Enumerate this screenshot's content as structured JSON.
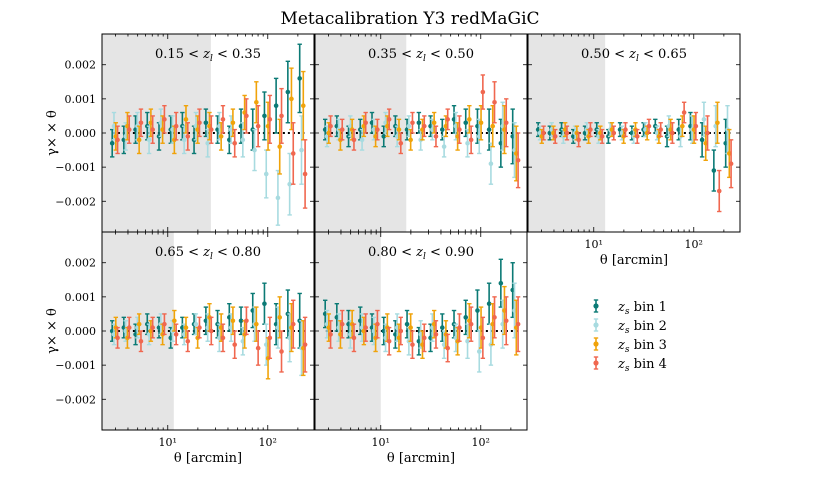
{
  "chart_data": {
    "type": "scatter",
    "title": "Metacalibration Y3 redMaGiC",
    "xlabel": "θ [arcmin]",
    "ylabel": "γ× × θ",
    "xscale": "log",
    "xlim": [
      2.2,
      290
    ],
    "ylim": [
      -0.0029,
      0.0029
    ],
    "yticks": [
      -0.002,
      -0.001,
      0.0,
      0.001,
      0.002
    ],
    "ytick_labels": [
      "−0.002",
      "−0.001",
      "0.000",
      "0.001",
      "0.002"
    ],
    "xtick_labels": [
      "10¹",
      "10²"
    ],
    "theta_bins": [
      2.96,
      3.87,
      5.07,
      6.64,
      8.7,
      11.4,
      14.9,
      19.5,
      25.6,
      33.5,
      43.9,
      57.5,
      75.3,
      98.6,
      129,
      169,
      222
    ],
    "series": [
      {
        "name": "zs bin 1",
        "label": "zs bin 1",
        "color": "#0b7a75"
      },
      {
        "name": "zs bin 2",
        "label": "zs bin 2",
        "color": "#a8dbe0"
      },
      {
        "name": "zs bin 3",
        "label": "zs bin 3",
        "color": "#f0a30a"
      },
      {
        "name": "zs bin 4",
        "label": "zs bin 4",
        "color": "#f0674f"
      }
    ],
    "panels": [
      {
        "label": "0.15 < zl < 0.35",
        "excluded_below_theta": 27,
        "values": [
          [
            -0.0003,
            -0.0002,
            0.0001,
            0.0002,
            -0.0001,
            0.0001,
            0.0002,
            -0.0002,
            0.0003,
            0.0001,
            -0.0002,
            0.0002,
            0.0001,
            0.0005,
            0.0008,
            0.0012,
            0.0016
          ],
          [
            0.0002,
            -0.0001,
            0.0002,
            -0.0002,
            0.0003,
            0.0001,
            -0.0002,
            0.0002,
            -0.0003,
            0.0002,
            0.0001,
            -0.0002,
            -0.0005,
            -0.0012,
            -0.0019,
            -0.0015,
            -0.0005
          ],
          [
            -0.0001,
            0.0002,
            -0.0002,
            0.0003,
            0.0001,
            -0.0002,
            0.0004,
            0.0001,
            0.0002,
            -0.0001,
            0.0003,
            0.0006,
            0.0009,
            0.0002,
            -0.0004,
            0.001,
            0.0008
          ],
          [
            -0.0002,
            0.0001,
            0.0003,
            0.0001,
            0.0004,
            0.0002,
            -0.0001,
            0.0003,
            0.0001,
            0.0004,
            -0.0003,
            0.0005,
            0.0002,
            0.0004,
            0.0005,
            -0.0006,
            -0.0012
          ]
        ],
        "errors": [
          [
            0.0004,
            0.0004,
            0.0004,
            0.0004,
            0.0004,
            0.0004,
            0.0004,
            0.0004,
            0.0004,
            0.0004,
            0.0004,
            0.0005,
            0.0006,
            0.0007,
            0.0008,
            0.0009,
            0.001
          ],
          [
            0.0004,
            0.0004,
            0.0004,
            0.0004,
            0.0004,
            0.0004,
            0.0004,
            0.0004,
            0.0004,
            0.0004,
            0.0004,
            0.0005,
            0.0006,
            0.0007,
            0.0008,
            0.0009,
            0.001
          ],
          [
            0.0004,
            0.0004,
            0.0004,
            0.0004,
            0.0004,
            0.0004,
            0.0004,
            0.0004,
            0.0004,
            0.0004,
            0.0004,
            0.0005,
            0.0006,
            0.0007,
            0.0008,
            0.0009,
            0.001
          ],
          [
            0.0004,
            0.0004,
            0.0004,
            0.0004,
            0.0004,
            0.0004,
            0.0004,
            0.0004,
            0.0004,
            0.0004,
            0.0004,
            0.0005,
            0.0006,
            0.0007,
            0.0008,
            0.0009,
            0.001
          ]
        ]
      },
      {
        "label": "0.35 < zl < 0.50",
        "excluded_below_theta": 18,
        "values": [
          [
            0.0001,
            0.0002,
            -0.0001,
            0.0001,
            0.0003,
            -0.0001,
            0.0002,
            0.0001,
            0.0003,
            0.0002,
            0.0001,
            0.0004,
            0.0003,
            0.0002,
            0.0001,
            -0.0003,
            -0.0001
          ],
          [
            -0.0001,
            0.0001,
            0.0002,
            -0.0002,
            0.0001,
            0.0003,
            -0.0001,
            0.0002,
            -0.0002,
            0.0001,
            -0.0004,
            0.0002,
            -0.0003,
            -0.0001,
            -0.0009,
            0.0002,
            -0.0005
          ],
          [
            0.0,
            -0.0002,
            0.0001,
            0.0002,
            -0.0001,
            0.0002,
            0.0001,
            -0.0002,
            0.0001,
            0.0003,
            0.0002,
            -0.0001,
            0.0004,
            0.0003,
            0.0002,
            0.0001,
            -0.0006
          ],
          [
            0.0002,
            0.0001,
            -0.0002,
            0.0003,
            0.0001,
            0.0004,
            -0.0003,
            0.0003,
            0.0002,
            -0.0001,
            0.0004,
            0.0001,
            -0.0002,
            0.0012,
            0.0009,
            0.0003,
            -0.0008
          ]
        ],
        "errors": [
          [
            0.0003,
            0.0003,
            0.0003,
            0.0003,
            0.0003,
            0.0003,
            0.0003,
            0.0003,
            0.0003,
            0.0003,
            0.0003,
            0.0004,
            0.0004,
            0.0005,
            0.0006,
            0.0007,
            0.0008
          ],
          [
            0.0003,
            0.0003,
            0.0003,
            0.0003,
            0.0003,
            0.0003,
            0.0003,
            0.0003,
            0.0003,
            0.0003,
            0.0003,
            0.0004,
            0.0004,
            0.0005,
            0.0006,
            0.0007,
            0.0008
          ],
          [
            0.0003,
            0.0003,
            0.0003,
            0.0003,
            0.0003,
            0.0003,
            0.0003,
            0.0003,
            0.0003,
            0.0003,
            0.0003,
            0.0004,
            0.0004,
            0.0005,
            0.0006,
            0.0007,
            0.0008
          ],
          [
            0.0003,
            0.0003,
            0.0003,
            0.0003,
            0.0003,
            0.0003,
            0.0003,
            0.0003,
            0.0003,
            0.0003,
            0.0003,
            0.0004,
            0.0004,
            0.0005,
            0.0006,
            0.0007,
            0.0008
          ]
        ]
      },
      {
        "label": "0.50 < zl < 0.65",
        "excluded_below_theta": 13,
        "values": [
          [
            0.0001,
            0.0,
            0.0001,
            -0.0001,
            0.0,
            0.0001,
            -0.0001,
            0.0001,
            0.0,
            0.0001,
            0.0002,
            -0.0001,
            0.0001,
            0.0002,
            -0.0002,
            -0.0011,
            -0.0003
          ],
          [
            0.0,
            0.0001,
            -0.0001,
            0.0,
            0.0001,
            -0.0001,
            0.0001,
            0.0,
            -0.0001,
            0.0001,
            0.0,
            0.0002,
            -0.0001,
            0.0001,
            0.0004,
            0.0002,
            0.0001
          ],
          [
            -0.0001,
            0.0,
            0.0001,
            0.0,
            -0.0001,
            0.0,
            0.0001,
            -0.0001,
            0.0001,
            0.0,
            -0.0001,
            0.0001,
            0.0002,
            0.0001,
            -0.0003,
            0.0003,
            -0.0006
          ],
          [
            0.0,
            -0.0001,
            0.0,
            -0.0002,
            0.0001,
            -0.0001,
            0.0,
            0.0001,
            -0.0001,
            0.0002,
            0.0001,
            0.0,
            0.0006,
            0.0002,
            0.0,
            -0.0017,
            -0.0009
          ]
        ],
        "errors": [
          [
            0.0002,
            0.0002,
            0.0002,
            0.0002,
            0.0002,
            0.0002,
            0.0002,
            0.0002,
            0.0002,
            0.0002,
            0.0002,
            0.0003,
            0.0003,
            0.0004,
            0.0005,
            0.0006,
            0.0007
          ],
          [
            0.0002,
            0.0002,
            0.0002,
            0.0002,
            0.0002,
            0.0002,
            0.0002,
            0.0002,
            0.0002,
            0.0002,
            0.0002,
            0.0003,
            0.0003,
            0.0004,
            0.0005,
            0.0006,
            0.0007
          ],
          [
            0.0002,
            0.0002,
            0.0002,
            0.0002,
            0.0002,
            0.0002,
            0.0002,
            0.0002,
            0.0002,
            0.0002,
            0.0002,
            0.0003,
            0.0003,
            0.0004,
            0.0005,
            0.0006,
            0.0007
          ],
          [
            0.0002,
            0.0002,
            0.0002,
            0.0002,
            0.0002,
            0.0002,
            0.0002,
            0.0002,
            0.0002,
            0.0002,
            0.0002,
            0.0003,
            0.0003,
            0.0004,
            0.0005,
            0.0006,
            0.0007
          ]
        ]
      },
      {
        "label": "0.65 < zl < 0.80",
        "excluded_below_theta": 11.5,
        "values": [
          [
            0.0,
            0.0001,
            -0.0001,
            0.0002,
            0.0001,
            -0.0002,
            0.0001,
            0.0002,
            0.0003,
            0.0002,
            0.0004,
            0.0003,
            0.0006,
            0.0008,
            0.0002,
            0.0005,
            0.0003
          ],
          [
            -0.0001,
            0.0,
            0.0001,
            -0.0001,
            0.0002,
            0.0,
            -0.0001,
            0.0002,
            0.0001,
            -0.0002,
            0.0001,
            -0.0003,
            0.0002,
            -0.0004,
            0.0001,
            -0.0002,
            -0.0005
          ],
          [
            0.0001,
            -0.0002,
            0.0002,
            0.0,
            -0.0001,
            0.0003,
            0.0001,
            -0.0002,
            0.0004,
            0.0001,
            0.0003,
            -0.0001,
            0.0002,
            -0.0008,
            0.0004,
            0.0001,
            -0.0005
          ],
          [
            -0.0002,
            0.0001,
            -0.0003,
            0.0001,
            0.0002,
            -0.0001,
            -0.0003,
            0.0001,
            0.0,
            -0.0002,
            -0.0004,
            0.0003,
            -0.0005,
            -0.0002,
            -0.0006,
            0.0002,
            -0.0004
          ]
        ],
        "errors": [
          [
            0.0003,
            0.0003,
            0.0003,
            0.0003,
            0.0003,
            0.0003,
            0.0003,
            0.0003,
            0.0004,
            0.0004,
            0.0004,
            0.0004,
            0.0005,
            0.0006,
            0.0006,
            0.0007,
            0.0008
          ],
          [
            0.0003,
            0.0003,
            0.0003,
            0.0003,
            0.0003,
            0.0003,
            0.0003,
            0.0003,
            0.0004,
            0.0004,
            0.0004,
            0.0004,
            0.0005,
            0.0006,
            0.0006,
            0.0007,
            0.0008
          ],
          [
            0.0003,
            0.0003,
            0.0003,
            0.0003,
            0.0003,
            0.0003,
            0.0003,
            0.0003,
            0.0004,
            0.0004,
            0.0004,
            0.0004,
            0.0005,
            0.0006,
            0.0006,
            0.0007,
            0.0008
          ],
          [
            0.0003,
            0.0003,
            0.0003,
            0.0003,
            0.0003,
            0.0003,
            0.0003,
            0.0003,
            0.0004,
            0.0004,
            0.0004,
            0.0004,
            0.0005,
            0.0006,
            0.0006,
            0.0007,
            0.0008
          ]
        ]
      },
      {
        "label": "0.80 < zl < 0.90",
        "excluded_below_theta": 10,
        "values": [
          [
            0.0005,
            0.0004,
            0.0002,
            0.0003,
            0.0001,
            0.0,
            -0.0001,
            0.0002,
            -0.0003,
            -0.0002,
            0.0001,
            0.0002,
            0.0004,
            0.0006,
            0.0008,
            0.0014,
            0.0012
          ],
          [
            0.0002,
            0.0001,
            -0.0001,
            0.0001,
            0.0,
            -0.0002,
            0.0001,
            -0.0003,
            -0.0001,
            0.0001,
            -0.0004,
            -0.0002,
            -0.0003,
            -0.0006,
            -0.0004,
            0.0002,
            0.0006
          ],
          [
            0.0001,
            -0.0001,
            0.0002,
            0.0,
            -0.0002,
            0.0001,
            -0.0002,
            0.0001,
            -0.0004,
            0.0002,
            -0.0001,
            -0.0003,
            0.0003,
            0.0001,
            0.0002,
            0.0006,
            0.0001
          ],
          [
            -0.0001,
            0.0002,
            -0.0002,
            0.0001,
            0.0002,
            -0.0003,
            0.0,
            -0.0004,
            -0.0002,
            -0.0001,
            -0.0005,
            0.0001,
            0.0002,
            -0.0002,
            0.0004,
            0.0003,
            0.0002
          ]
        ],
        "errors": [
          [
            0.0004,
            0.0004,
            0.0004,
            0.0004,
            0.0004,
            0.0004,
            0.0004,
            0.0004,
            0.0004,
            0.0004,
            0.0004,
            0.0004,
            0.0005,
            0.0006,
            0.0006,
            0.0007,
            0.0008
          ],
          [
            0.0004,
            0.0004,
            0.0004,
            0.0004,
            0.0004,
            0.0004,
            0.0004,
            0.0004,
            0.0004,
            0.0004,
            0.0004,
            0.0004,
            0.0005,
            0.0006,
            0.0006,
            0.0007,
            0.0008
          ],
          [
            0.0004,
            0.0004,
            0.0004,
            0.0004,
            0.0004,
            0.0004,
            0.0004,
            0.0004,
            0.0004,
            0.0004,
            0.0004,
            0.0004,
            0.0005,
            0.0006,
            0.0006,
            0.0007,
            0.0008
          ],
          [
            0.0004,
            0.0004,
            0.0004,
            0.0004,
            0.0004,
            0.0004,
            0.0004,
            0.0004,
            0.0004,
            0.0004,
            0.0004,
            0.0004,
            0.0005,
            0.0006,
            0.0006,
            0.0007,
            0.0008
          ]
        ]
      }
    ]
  }
}
